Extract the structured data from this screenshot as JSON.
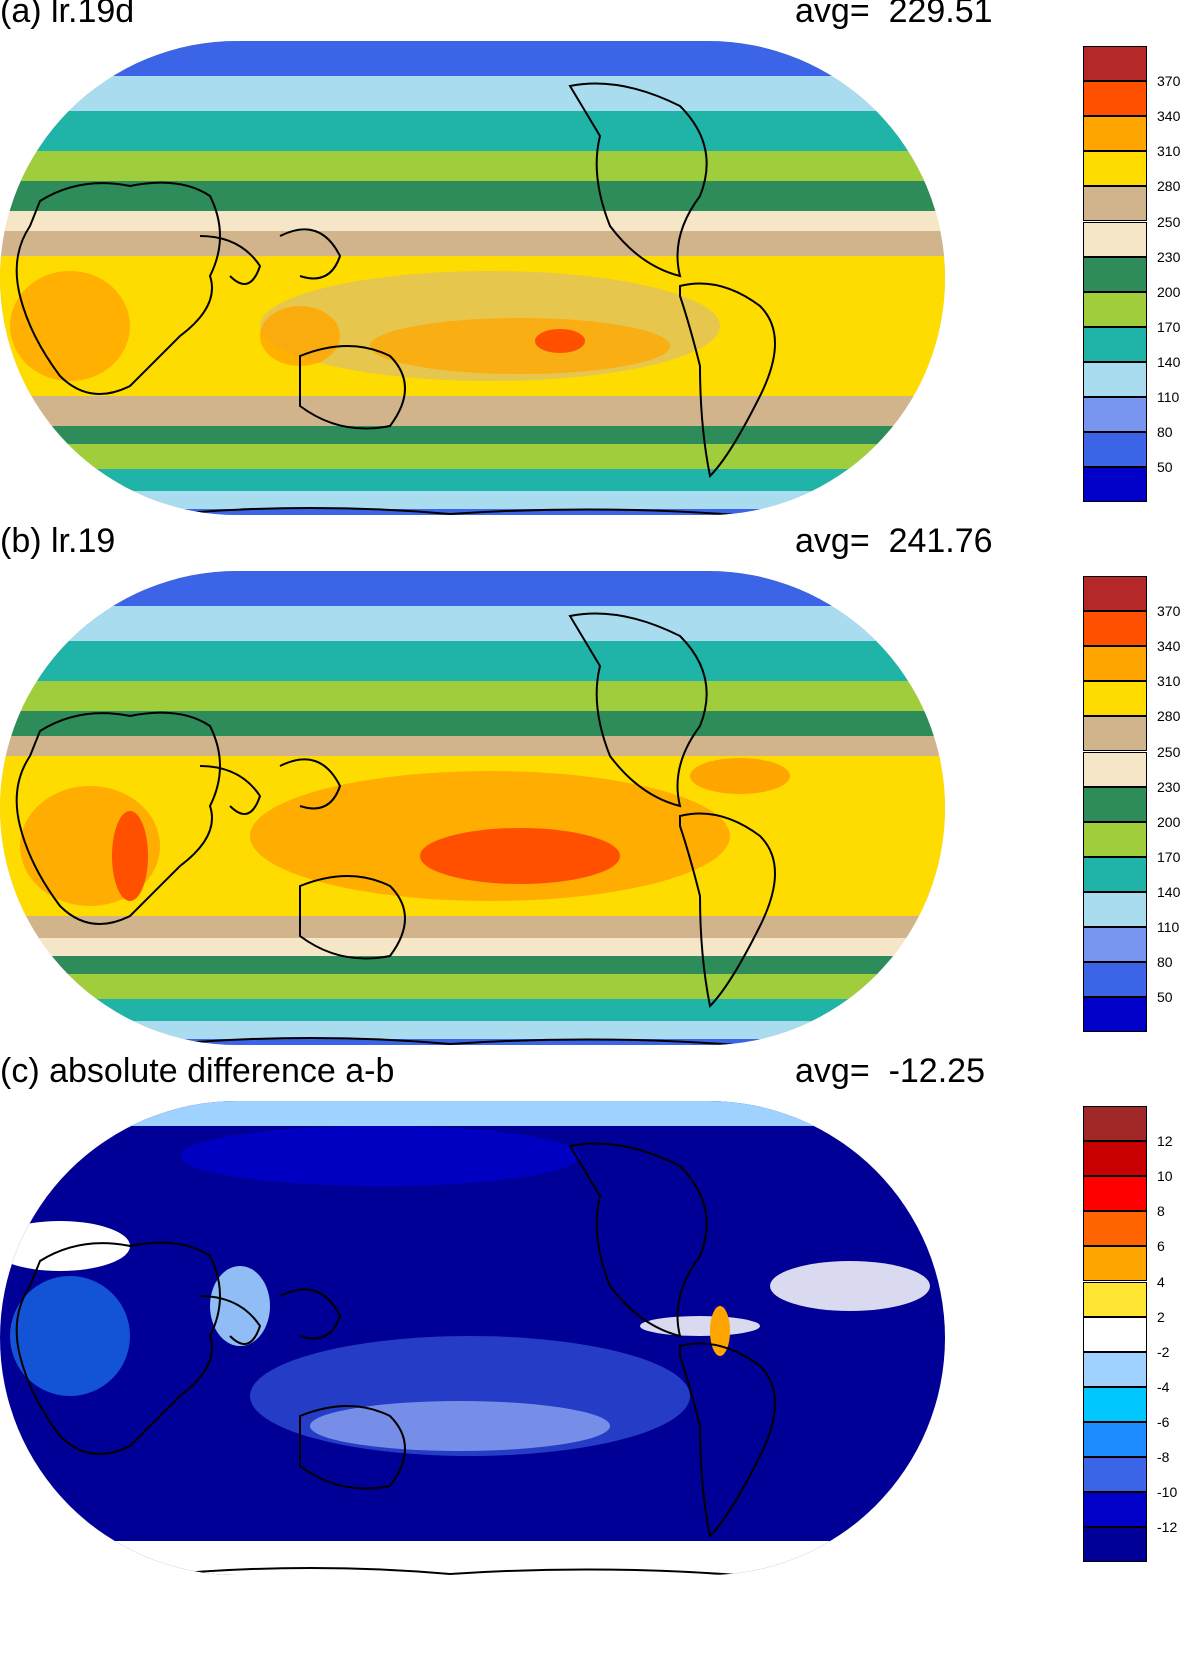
{
  "panels": [
    {
      "id": "a",
      "title": "(a) lr.19d",
      "avg": "avg=  229.51",
      "colorbar": {
        "colors": [
          "#0000c8",
          "#3c64e6",
          "#7896f0",
          "#aadcf0",
          "#20b4a8",
          "#a0cd3c",
          "#2d8c5a",
          "#f5e6c8",
          "#d2b48c",
          "#ffdc00",
          "#ffa500",
          "#ff5000",
          "#b42828"
        ],
        "labels": [
          "50",
          "80",
          "110",
          "140",
          "170",
          "200",
          "230",
          "250",
          "280",
          "310",
          "340",
          "370"
        ]
      }
    },
    {
      "id": "b",
      "title": "(b) lr.19",
      "avg": "avg=  241.76",
      "colorbar": {
        "colors": [
          "#0000c8",
          "#3c64e6",
          "#7896f0",
          "#aadcf0",
          "#20b4a8",
          "#a0cd3c",
          "#2d8c5a",
          "#f5e6c8",
          "#d2b48c",
          "#ffdc00",
          "#ffa500",
          "#ff5000",
          "#b42828"
        ],
        "labels": [
          "50",
          "80",
          "110",
          "140",
          "170",
          "200",
          "230",
          "250",
          "280",
          "310",
          "340",
          "370"
        ]
      }
    },
    {
      "id": "c",
      "title": "(c) absolute difference a-b",
      "avg": "avg=  -12.25",
      "colorbar": {
        "colors": [
          "#000096",
          "#0000c8",
          "#3c64e6",
          "#1e8cff",
          "#00c8ff",
          "#a0d2ff",
          "#ffffff",
          "#ffe632",
          "#ffa500",
          "#ff6400",
          "#ff0000",
          "#c80000",
          "#a02828"
        ],
        "labels": [
          "-12",
          "-10",
          "-8",
          "-6",
          "-4",
          "-2",
          "2",
          "4",
          "6",
          "8",
          "10",
          "12"
        ]
      }
    }
  ]
}
